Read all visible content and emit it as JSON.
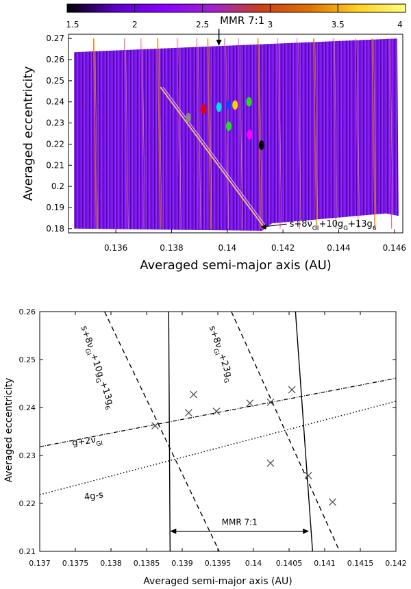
{
  "chart_data": [
    {
      "type": "heatmap",
      "xlabel": "Averaged semi-major axis (AU)",
      "ylabel": "Averaged eccentricity",
      "xlim": [
        0.1343,
        0.1463
      ],
      "ylim": [
        0.178,
        0.272
      ],
      "xticks": [
        "0.136",
        "0.138",
        "0.14",
        "0.142",
        "0.144",
        "0.146"
      ],
      "yticks": [
        "0.18",
        "0.19",
        "0.2",
        "0.21",
        "0.22",
        "0.23",
        "0.24",
        "0.25",
        "0.26",
        "0.27"
      ],
      "colorbar": {
        "range": [
          1.5,
          4
        ],
        "ticks": [
          "1.5",
          "2",
          "2.5",
          "3",
          "3.5",
          "4"
        ],
        "colors": [
          "#000000",
          "#5b00c8",
          "#8a00ff",
          "#a020d0",
          "#c8401e",
          "#e07000",
          "#ffd020",
          "#ffff80"
        ]
      },
      "annotations": [
        {
          "label": "MMR 7:1",
          "x": 0.1397,
          "y": 0.272
        },
        {
          "label": "s+8ν_GI+10g_G+13g_6",
          "x": 0.1412,
          "y": 0.1815
        }
      ],
      "clusters": [
        {
          "color": "#888888",
          "x": 0.1386,
          "y": 0.2325
        },
        {
          "color": "#ee0000",
          "x": 0.13915,
          "y": 0.2365
        },
        {
          "color": "#00e0e0",
          "x": 0.1397,
          "y": 0.2375
        },
        {
          "color": "#1a3cff",
          "x": 0.14005,
          "y": 0.2385
        },
        {
          "color": "#ffd000",
          "x": 0.14028,
          "y": 0.2385
        },
        {
          "color": "#22dd22",
          "x": 0.14078,
          "y": 0.24
        },
        {
          "color": "#22dd22",
          "x": 0.14005,
          "y": 0.2285
        },
        {
          "color": "#ff00ff",
          "x": 0.1408,
          "y": 0.2245
        },
        {
          "color": "#000000",
          "x": 0.14123,
          "y": 0.2195
        }
      ]
    },
    {
      "type": "scatter",
      "xlabel": "Averaged semi-major axis (AU)",
      "ylabel": "Averaged eccentricity",
      "xlim": [
        0.137,
        0.142
      ],
      "ylim": [
        0.21,
        0.26
      ],
      "xticks": [
        "0.137",
        "0.1375",
        "0.138",
        "0.1385",
        "0.139",
        "0.1395",
        "0.14",
        "0.1405",
        "0.141",
        "0.1415",
        "0.142"
      ],
      "yticks": [
        "0.21",
        "0.22",
        "0.23",
        "0.24",
        "0.25",
        "0.26"
      ],
      "points": [
        {
          "x": 0.13862,
          "y": 0.2362
        },
        {
          "x": 0.13909,
          "y": 0.2389
        },
        {
          "x": 0.13916,
          "y": 0.2427
        },
        {
          "x": 0.13948,
          "y": 0.2392
        },
        {
          "x": 0.13995,
          "y": 0.2409
        },
        {
          "x": 0.14024,
          "y": 0.2411
        },
        {
          "x": 0.14054,
          "y": 0.2437
        },
        {
          "x": 0.14024,
          "y": 0.2284
        },
        {
          "x": 0.14077,
          "y": 0.2258
        },
        {
          "x": 0.14111,
          "y": 0.2203
        }
      ],
      "lines": [
        {
          "label": "s+8ν_GI+10g_G+13g_6",
          "style": "dashed",
          "from": [
            0.13791,
            0.26
          ],
          "to": [
            0.13952,
            0.21
          ]
        },
        {
          "label": "s+8ν_GI+23g_G",
          "style": "dashed",
          "from": [
            0.13969,
            0.26
          ],
          "to": [
            0.14121,
            0.21
          ]
        },
        {
          "label": "g+2ν_GI",
          "style": "dash-dot",
          "from": [
            0.137,
            0.2318
          ],
          "to": [
            0.142,
            0.2461
          ]
        },
        {
          "label": "4g-s",
          "style": "dotted",
          "from": [
            0.137,
            0.2218
          ],
          "to": [
            0.142,
            0.2413
          ]
        },
        {
          "label": "MMR 7:1 left",
          "style": "solid",
          "from": [
            0.13881,
            0.26
          ],
          "to": [
            0.13883,
            0.21
          ]
        },
        {
          "label": "MMR 7:1 right",
          "style": "solid",
          "from": [
            0.14059,
            0.26
          ],
          "to": [
            0.14083,
            0.21
          ]
        }
      ],
      "annotations": [
        {
          "label": "MMR 7:1",
          "from": [
            0.13883,
            0.2142
          ],
          "to": [
            0.14078,
            0.2142
          ]
        }
      ]
    }
  ]
}
